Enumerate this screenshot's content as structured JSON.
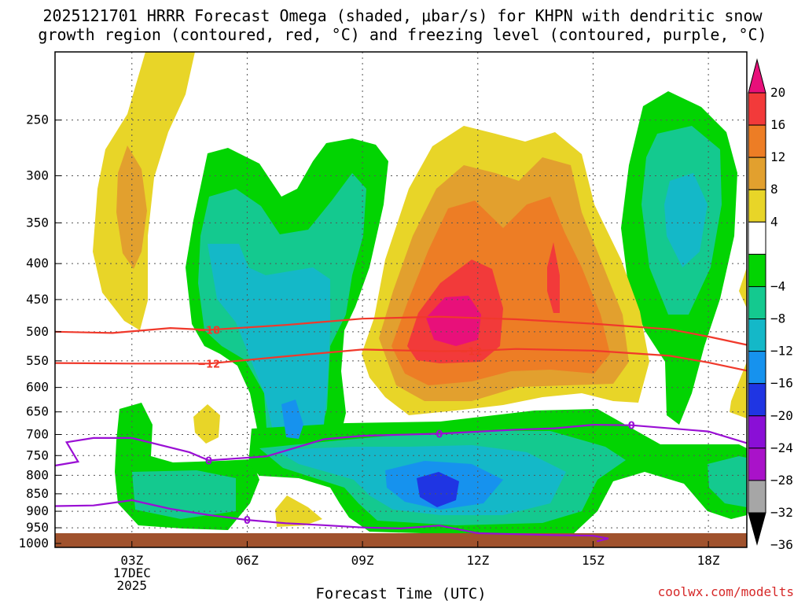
{
  "title": {
    "line1": "2025121701 HRRR Forecast Omega (shaded, μbar/s) for KHPN with dendritic snow",
    "line2": "growth region (contoured, red, °C) and freezing level (contoured, purple, °C)"
  },
  "credit": "coolwx.com/modelts",
  "chart_data": {
    "type": "time-height cross-section (shaded contour)",
    "xlabel": "Forecast Time (UTC)",
    "ylabel": "",
    "x_ticks": [
      {
        "hour": 2,
        "lines": [
          "03Z",
          "17DEC",
          "2025"
        ]
      },
      {
        "hour": 5,
        "lines": [
          "06Z"
        ]
      },
      {
        "hour": 8,
        "lines": [
          "09Z"
        ]
      },
      {
        "hour": 11,
        "lines": [
          "12Z"
        ]
      },
      {
        "hour": 14,
        "lines": [
          "15Z"
        ]
      },
      {
        "hour": 17,
        "lines": [
          "18Z"
        ]
      }
    ],
    "x_range": [
      0,
      18
    ],
    "y_ticks": [
      250,
      300,
      350,
      400,
      450,
      500,
      550,
      600,
      650,
      700,
      750,
      800,
      850,
      900,
      950,
      1000
    ],
    "y_range_hPa": [
      200,
      1013
    ],
    "grid": true,
    "colorbar": {
      "units": "μbar/s",
      "labels": [
        "20",
        "16",
        "12",
        "8",
        "4",
        "−4",
        "−8",
        "−12",
        "−16",
        "−20",
        "−24",
        "−28",
        "−32",
        "−36"
      ],
      "bins": [
        {
          "range": ">20",
          "color": "#e8107a"
        },
        {
          "range": "16 to 20",
          "color": "#f23a3a"
        },
        {
          "range": "12 to 16",
          "color": "#ed7d25"
        },
        {
          "range": "8 to 12",
          "color": "#e2a02e"
        },
        {
          "range": "4 to 8",
          "color": "#e8d528"
        },
        {
          "range": "-4 to 4",
          "color": "#ffffff"
        },
        {
          "range": "-8 to -4",
          "color": "#02d402"
        },
        {
          "range": "-12 to -8",
          "color": "#14c98f"
        },
        {
          "range": "-16 to -12",
          "color": "#14b8c8"
        },
        {
          "range": "-20 to -16",
          "color": "#1692ee"
        },
        {
          "range": "-24 to -20",
          "color": "#1f35e3"
        },
        {
          "range": "-28 to -24",
          "color": "#8a0fd6"
        },
        {
          "range": "-32 to -28",
          "color": "#a912c9"
        },
        {
          "range": "-36 to -32",
          "color": "#a6a6a6"
        },
        {
          "range": "<-36",
          "color": "#000000"
        }
      ]
    },
    "contours": [
      {
        "name": "dendritic -18C",
        "label": "−18",
        "color": "#f0392b",
        "hour": [
          0,
          1.5,
          3,
          4,
          6,
          8,
          10,
          12,
          14,
          16,
          17,
          18
        ],
        "hPa": [
          500,
          502,
          494,
          497,
          489,
          479,
          476,
          480,
          487,
          496,
          508,
          522
        ]
      },
      {
        "name": "dendritic -12C",
        "label": "−12",
        "color": "#f0392b",
        "hour": [
          0,
          2,
          4,
          6,
          8,
          10,
          11,
          12,
          14,
          16,
          17,
          18
        ],
        "hPa": [
          554,
          555,
          555,
          542,
          530,
          533,
          532,
          529,
          532,
          541,
          553,
          568
        ]
      },
      {
        "name": "freezing level 0C (upper)",
        "label": "0",
        "color": "#9a0fd4",
        "hour": [
          0,
          0.6,
          0.3,
          1,
          2,
          3.5,
          4,
          5.5,
          7,
          8,
          10,
          12,
          13,
          14,
          15,
          17,
          18
        ],
        "hPa": [
          775,
          765,
          718,
          708,
          708,
          742,
          762,
          752,
          711,
          703,
          698,
          689,
          686,
          678,
          679,
          693,
          720
        ]
      },
      {
        "name": "freezing level 0C (lower)",
        "label": "0",
        "color": "#9a0fd4",
        "hour": [
          0,
          1,
          2,
          3,
          4,
          5,
          6,
          7,
          8,
          9,
          10,
          11,
          12,
          13,
          14,
          14.4,
          14.1
        ],
        "hPa": [
          885,
          883,
          868,
          893,
          911,
          926,
          936,
          942,
          949,
          952,
          943,
          967,
          970,
          973,
          975,
          984,
          993
        ]
      }
    ],
    "shaded_regions": [
      {
        "name": "upward motion max",
        "center_hour": 11,
        "center_hPa": 480,
        "peak": ">20"
      },
      {
        "name": "upward motion secondary",
        "center_hour": 13.8,
        "center_hPa": 420,
        "peak": "16 to 20"
      },
      {
        "name": "sinking motion max",
        "center_hour": 10.8,
        "center_hPa": 860,
        "peak": "-24 to -20"
      }
    ]
  }
}
